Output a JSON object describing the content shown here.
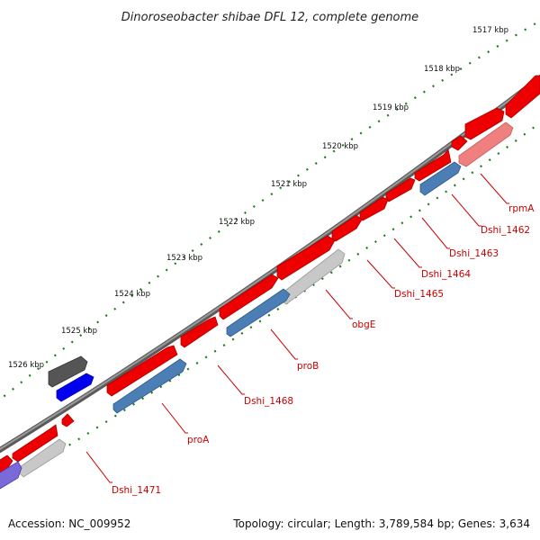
{
  "title": "Dinoroseobacter shibae DFL 12, complete genome",
  "footer": {
    "accession": "Accession: NC_009952",
    "topology": "Topology: circular; Length: 3,789,584 bp; Genes: 3,634"
  },
  "scale": {
    "unit": "kbp",
    "ticks": [
      "1517 kbp",
      "1518 kbp",
      "1519 kbp",
      "1520 kbp",
      "1521 kbp",
      "1522 kbp",
      "1523 kbp",
      "1524 kbp",
      "1525 kbp",
      "1526 kbp"
    ]
  },
  "gene_labels": [
    "rpmA",
    "Dshi_1462",
    "Dshi_1463",
    "Dshi_1464",
    "Dshi_1465",
    "obgE",
    "proB",
    "Dshi_1468",
    "proA",
    "Dshi_1471"
  ],
  "colors": {
    "gene_red": "#ee0000",
    "cds_blue": "#4a7eb5",
    "rna_blue": "#0000ee",
    "pseudo_gray": "#c8c8c8",
    "backbone": "#8c8c8c",
    "tick_green": "#1a7a1a",
    "label_red": "#cc0000"
  }
}
